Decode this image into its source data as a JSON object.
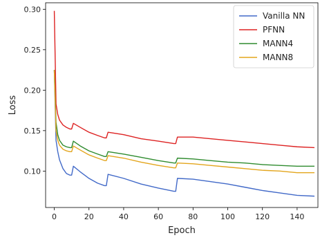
{
  "chart_data": {
    "type": "line",
    "title": "",
    "xlabel": "Epoch",
    "ylabel": "Loss",
    "xlim": [
      -5,
      152
    ],
    "ylim": [
      0.055,
      0.308
    ],
    "xticks": [
      0,
      20,
      40,
      60,
      80,
      100,
      120,
      140
    ],
    "xtick_labels": [
      "0",
      "20",
      "40",
      "60",
      "80",
      "100",
      "120",
      "140"
    ],
    "yticks": [
      0.1,
      0.15,
      0.2,
      0.25,
      0.3
    ],
    "ytick_labels": [
      "0.10",
      "0.15",
      "0.20",
      "0.25",
      "0.30"
    ],
    "grid": false,
    "legend_position": "top-right",
    "series": [
      {
        "name": "Vanilla NN",
        "color": "#4169c8",
        "x": [
          0,
          1,
          2,
          3,
          5,
          7,
          9,
          10,
          11,
          15,
          20,
          25,
          29,
          30,
          31,
          40,
          50,
          60,
          69,
          70,
          71,
          80,
          90,
          100,
          110,
          120,
          130,
          140,
          150
        ],
        "y": [
          0.225,
          0.138,
          0.124,
          0.114,
          0.103,
          0.097,
          0.095,
          0.095,
          0.106,
          0.099,
          0.091,
          0.085,
          0.082,
          0.082,
          0.096,
          0.091,
          0.084,
          0.079,
          0.075,
          0.075,
          0.091,
          0.09,
          0.087,
          0.084,
          0.08,
          0.076,
          0.073,
          0.07,
          0.069
        ]
      },
      {
        "name": "PFNN",
        "color": "#dd2222",
        "x": [
          0,
          1,
          2,
          3,
          5,
          7,
          9,
          10,
          11,
          15,
          20,
          25,
          29,
          30,
          31,
          40,
          50,
          60,
          69,
          70,
          71,
          80,
          90,
          100,
          110,
          120,
          130,
          140,
          150
        ],
        "y": [
          0.298,
          0.183,
          0.17,
          0.163,
          0.157,
          0.154,
          0.152,
          0.152,
          0.159,
          0.154,
          0.148,
          0.144,
          0.141,
          0.141,
          0.148,
          0.145,
          0.14,
          0.137,
          0.134,
          0.134,
          0.142,
          0.142,
          0.14,
          0.138,
          0.136,
          0.134,
          0.132,
          0.13,
          0.129
        ]
      },
      {
        "name": "MANN4",
        "color": "#2e8b2e",
        "x": [
          0,
          1,
          2,
          3,
          5,
          7,
          9,
          10,
          11,
          15,
          20,
          25,
          29,
          30,
          31,
          40,
          50,
          60,
          69,
          70,
          71,
          80,
          90,
          100,
          110,
          120,
          130,
          140,
          150
        ],
        "y": [
          0.225,
          0.16,
          0.145,
          0.138,
          0.132,
          0.13,
          0.129,
          0.129,
          0.137,
          0.131,
          0.125,
          0.121,
          0.118,
          0.118,
          0.124,
          0.121,
          0.117,
          0.113,
          0.11,
          0.11,
          0.116,
          0.115,
          0.113,
          0.111,
          0.11,
          0.108,
          0.107,
          0.106,
          0.106
        ]
      },
      {
        "name": "MANN8",
        "color": "#e3a51c",
        "x": [
          0,
          1,
          2,
          3,
          5,
          7,
          9,
          10,
          11,
          15,
          20,
          25,
          29,
          30,
          31,
          40,
          50,
          60,
          69,
          70,
          71,
          80,
          90,
          100,
          110,
          120,
          130,
          140,
          150
        ],
        "y": [
          0.225,
          0.15,
          0.138,
          0.132,
          0.127,
          0.125,
          0.124,
          0.124,
          0.131,
          0.126,
          0.12,
          0.116,
          0.113,
          0.113,
          0.119,
          0.116,
          0.111,
          0.107,
          0.104,
          0.104,
          0.11,
          0.109,
          0.107,
          0.105,
          0.103,
          0.101,
          0.1,
          0.098,
          0.098
        ]
      }
    ]
  }
}
